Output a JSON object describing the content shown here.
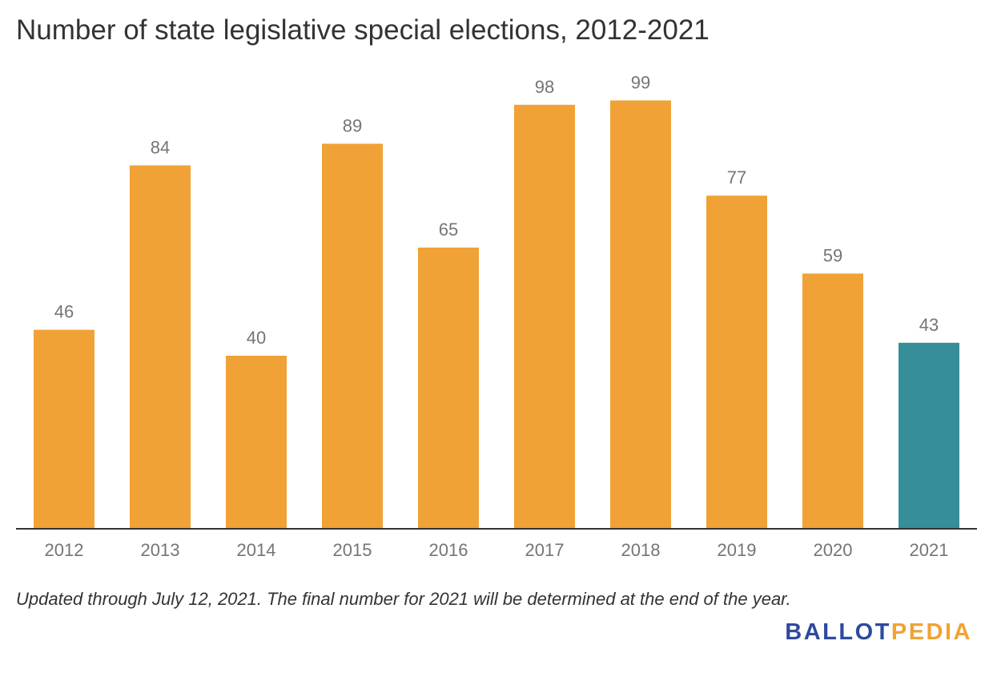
{
  "title": "Number of state legislative special elections, 2012-2021",
  "note": "Updated through July 12, 2021. The final number for 2021 will be determined at the end of the year.",
  "logo": {
    "part1": "BALLOT",
    "part2": "PEDIA",
    "color1": "#2e4a9e",
    "color2": "#f0a236"
  },
  "colors": {
    "default": "#f0a236",
    "highlight": "#368e99",
    "axis": "#333333",
    "label": "#757575"
  },
  "chart_data": {
    "type": "bar",
    "title": "Number of state legislative special elections, 2012-2021",
    "categories": [
      "2012",
      "2013",
      "2014",
      "2015",
      "2016",
      "2017",
      "2018",
      "2019",
      "2020",
      "2021"
    ],
    "values": [
      46,
      84,
      40,
      89,
      65,
      98,
      99,
      77,
      59,
      43
    ],
    "highlight_category": "2021",
    "ylim": [
      0,
      100
    ],
    "grid": false,
    "legend": "none"
  }
}
